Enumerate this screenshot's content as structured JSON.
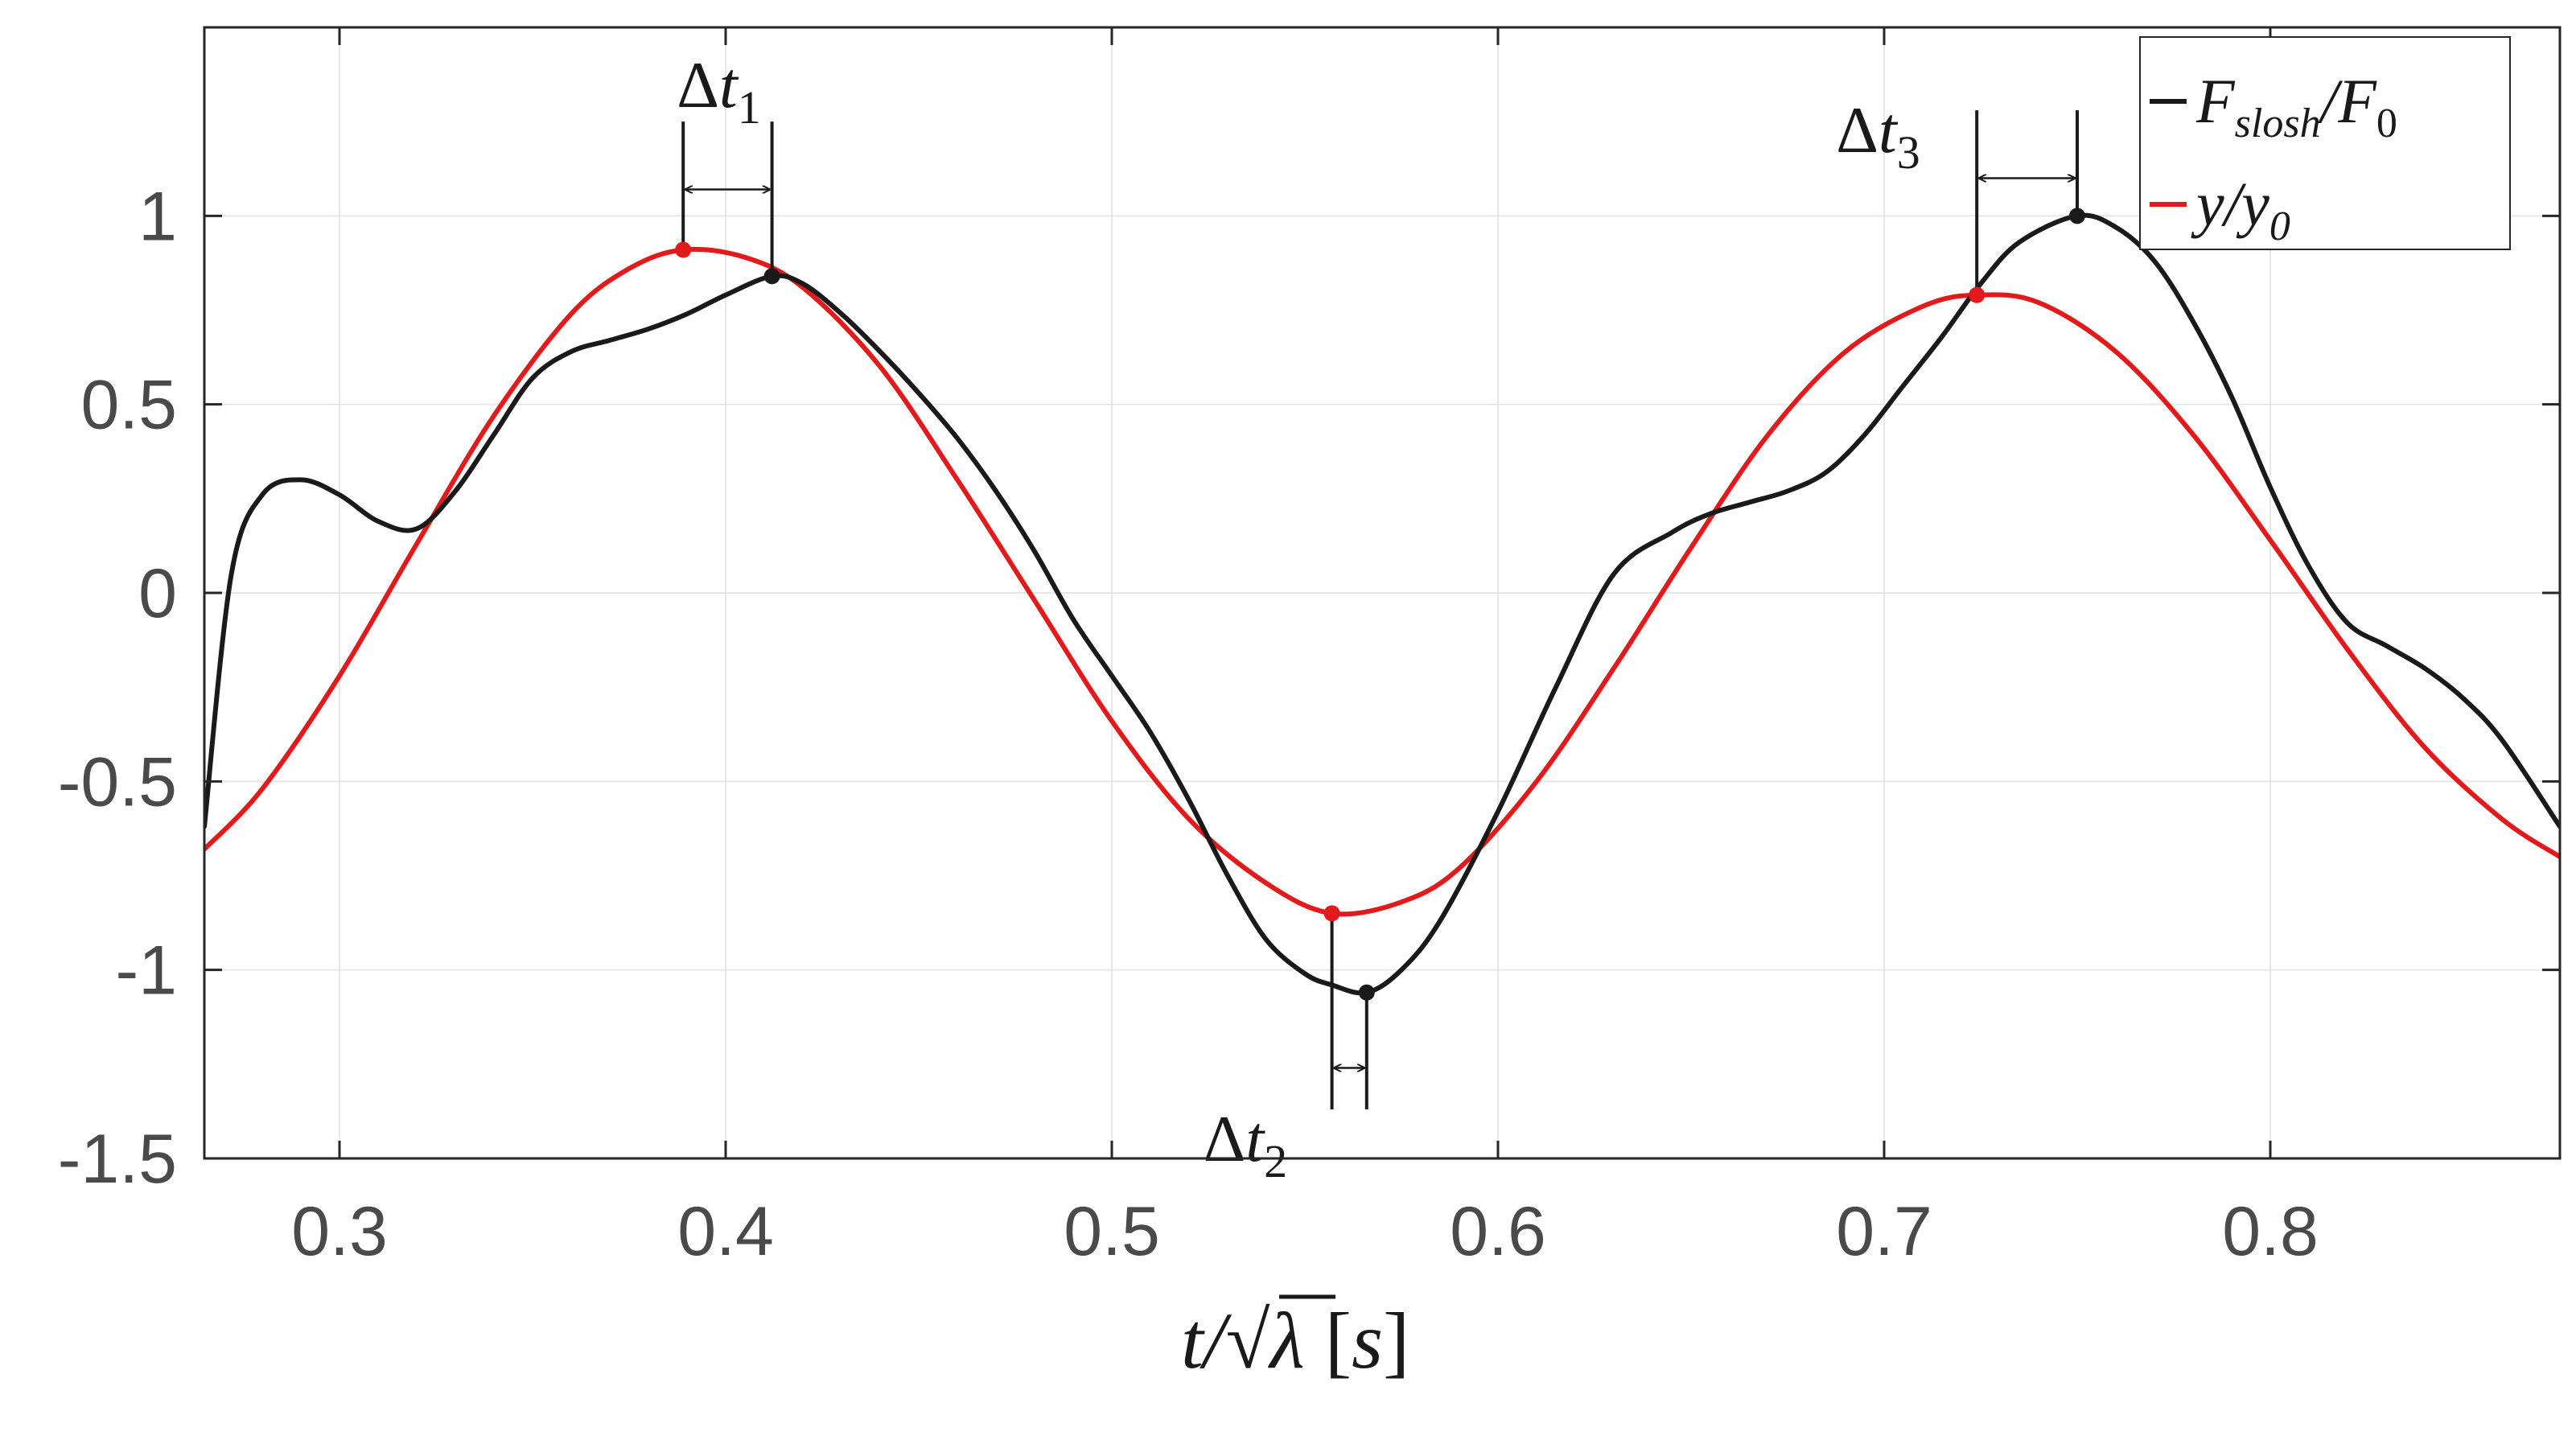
{
  "chart_data": {
    "type": "line",
    "title": "",
    "xlabel": {
      "base": "t/√λ",
      "unit": "[s]"
    },
    "ylabel": "",
    "xlim": [
      0.265,
      0.875
    ],
    "ylim": [
      -1.5,
      1.5
    ],
    "xticks": [
      0.3,
      0.4,
      0.5,
      0.6,
      0.7,
      0.8
    ],
    "xtick_labels": [
      "0.3",
      "0.4",
      "0.5",
      "0.6",
      "0.7",
      "0.8"
    ],
    "yticks": [
      1,
      0.5,
      0,
      -0.5,
      -1,
      -1.5
    ],
    "ytick_labels": [
      "1",
      "0.5",
      "0",
      "-0.5",
      "-1",
      "-1.5"
    ],
    "grid": true,
    "legend_position": "top-right",
    "series": [
      {
        "name": "F_slosh/F_0",
        "legend_base": "F",
        "legend_sub": "slosh",
        "legend_rest": "/F",
        "legend_sub2": "0",
        "color": "#1a1a1a",
        "x": [
          0.265,
          0.272,
          0.28,
          0.29,
          0.3,
          0.31,
          0.32,
          0.33,
          0.34,
          0.35,
          0.36,
          0.37,
          0.38,
          0.39,
          0.4,
          0.412,
          0.42,
          0.43,
          0.44,
          0.45,
          0.46,
          0.47,
          0.48,
          0.49,
          0.5,
          0.51,
          0.52,
          0.53,
          0.54,
          0.55,
          0.557,
          0.566,
          0.575,
          0.585,
          0.6,
          0.615,
          0.63,
          0.645,
          0.655,
          0.665,
          0.675,
          0.685,
          0.695,
          0.705,
          0.715,
          0.725,
          0.735,
          0.75,
          0.76,
          0.77,
          0.78,
          0.79,
          0.8,
          0.81,
          0.82,
          0.83,
          0.84,
          0.85,
          0.86,
          0.875
        ],
        "values": [
          -0.62,
          0.05,
          0.26,
          0.3,
          0.26,
          0.19,
          0.17,
          0.27,
          0.42,
          0.57,
          0.64,
          0.67,
          0.7,
          0.74,
          0.79,
          0.84,
          0.82,
          0.74,
          0.64,
          0.53,
          0.41,
          0.27,
          0.11,
          -0.07,
          -0.22,
          -0.37,
          -0.55,
          -0.75,
          -0.92,
          -1.01,
          -1.04,
          -1.06,
          -1.0,
          -0.87,
          -0.58,
          -0.25,
          0.05,
          0.16,
          0.21,
          0.24,
          0.27,
          0.32,
          0.42,
          0.55,
          0.68,
          0.82,
          0.93,
          1.0,
          0.97,
          0.88,
          0.72,
          0.52,
          0.28,
          0.07,
          -0.08,
          -0.14,
          -0.2,
          -0.28,
          -0.39,
          -0.62
        ]
      },
      {
        "name": "y/y_0",
        "legend_base": "y/y",
        "legend_sub": "0",
        "color": "#e31a1c",
        "x": [
          0.265,
          0.28,
          0.3,
          0.32,
          0.34,
          0.36,
          0.375,
          0.389,
          0.405,
          0.42,
          0.44,
          0.46,
          0.48,
          0.5,
          0.52,
          0.54,
          0.557,
          0.575,
          0.59,
          0.61,
          0.63,
          0.65,
          0.67,
          0.69,
          0.71,
          0.724,
          0.74,
          0.76,
          0.78,
          0.8,
          0.82,
          0.84,
          0.86,
          0.875
        ],
        "values": [
          -0.68,
          -0.52,
          -0.22,
          0.13,
          0.47,
          0.74,
          0.86,
          0.91,
          0.89,
          0.81,
          0.6,
          0.3,
          -0.02,
          -0.34,
          -0.6,
          -0.77,
          -0.85,
          -0.82,
          -0.73,
          -0.5,
          -0.2,
          0.12,
          0.42,
          0.64,
          0.76,
          0.79,
          0.77,
          0.64,
          0.42,
          0.14,
          -0.15,
          -0.41,
          -0.6,
          -0.7
        ]
      }
    ],
    "markers": [
      {
        "series": "y/y_0",
        "x": 0.389,
        "y": 0.91,
        "color": "#e31a1c"
      },
      {
        "series": "F_slosh/F_0",
        "x": 0.412,
        "y": 0.84,
        "color": "#1a1a1a"
      },
      {
        "series": "y/y_0",
        "x": 0.557,
        "y": -0.85,
        "color": "#e31a1c"
      },
      {
        "series": "F_slosh/F_0",
        "x": 0.566,
        "y": -1.06,
        "color": "#1a1a1a"
      },
      {
        "series": "y/y_0",
        "x": 0.724,
        "y": 0.79,
        "color": "#e31a1c"
      },
      {
        "series": "F_slosh/F_0",
        "x": 0.75,
        "y": 1.0,
        "color": "#1a1a1a"
      }
    ],
    "annotations": [
      {
        "label": "Δt",
        "sub": "1",
        "x1": 0.389,
        "x2": 0.412,
        "side": "above",
        "y1": 0.91,
        "y2": 0.84,
        "line_end": 1.25,
        "arrow_y": 1.07
      },
      {
        "label": "Δt",
        "sub": "2",
        "x1": 0.557,
        "x2": 0.566,
        "side": "below",
        "y1": -0.85,
        "y2": -1.06,
        "line_end": -1.37,
        "arrow_y": -1.26
      },
      {
        "label": "Δt",
        "sub": "3",
        "x1": 0.724,
        "x2": 0.75,
        "side": "above",
        "y1": 0.79,
        "y2": 1.0,
        "line_end": 1.28,
        "arrow_y": 1.1
      }
    ]
  }
}
